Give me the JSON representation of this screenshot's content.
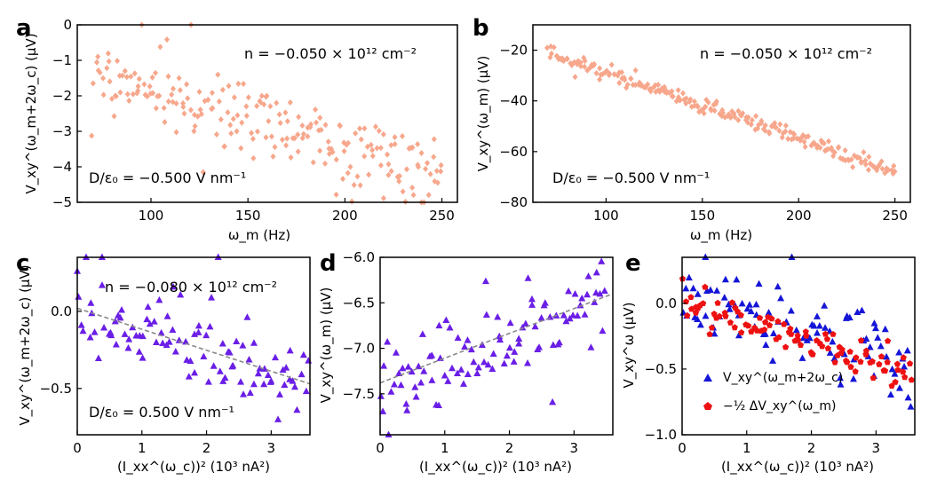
{
  "chart_data": [
    {
      "id": "a",
      "panel_label": "a",
      "type": "scatter",
      "marker": "diamond",
      "color": "#f7a78c",
      "xlabel": "ω_m (Hz)",
      "ylabel": "V_xy^(ω_m+2ω_c) (μV)",
      "xlim": [
        62,
        258
      ],
      "ylim": [
        -5,
        0
      ],
      "xticks": [
        100,
        150,
        200,
        250
      ],
      "yticks": [
        0,
        -1,
        -2,
        -3,
        -4,
        -5
      ],
      "xtick_labels": [
        "100",
        "150",
        "200",
        "250"
      ],
      "ytick_labels": [
        "0",
        "−1",
        "−2",
        "−3",
        "−4",
        "−5"
      ],
      "annotations": {
        "top_right": "n = −0.050 × 10¹² cm⁻²",
        "bottom_left": "D/ε₀ = −0.500 V nm⁻¹"
      },
      "trend": {
        "x_start": 70,
        "x_end": 250,
        "y_start": -1.3,
        "y_end": -4.2,
        "noise": 0.55,
        "count": 220
      }
    },
    {
      "id": "b",
      "panel_label": "b",
      "type": "scatter",
      "marker": "diamond",
      "color": "#f7a78c",
      "xlabel": "ω_m (Hz)",
      "ylabel": "V_xy^(ω_m) (μV)",
      "xlim": [
        62,
        258
      ],
      "ylim": [
        -80,
        -10
      ],
      "xticks": [
        100,
        150,
        200,
        250
      ],
      "yticks": [
        -20,
        -40,
        -60,
        -80
      ],
      "xtick_labels": [
        "100",
        "150",
        "200",
        "250"
      ],
      "ytick_labels": [
        "−20",
        "−40",
        "−60",
        "−80"
      ],
      "annotations": {
        "top_right": "n = −0.050 × 10¹² cm⁻²",
        "bottom_left": "D/ε₀ = −0.500 V nm⁻¹"
      },
      "trend": {
        "x_start": 70,
        "x_end": 250,
        "y_start": -21,
        "y_end": -68,
        "noise": 1.5,
        "count": 230
      }
    },
    {
      "id": "c",
      "panel_label": "c",
      "type": "scatter",
      "marker": "triangle",
      "color": "#6a1ee6",
      "xlabel": "(I_xx^(ω_c))² (10³ nA²)",
      "ylabel": "V_xy^(ω_m+2ω_c) (μV)",
      "xlim": [
        0,
        3.6
      ],
      "ylim": [
        -0.8,
        0.35
      ],
      "xticks": [
        0,
        1,
        2,
        3
      ],
      "yticks": [
        0.0,
        -0.5
      ],
      "xtick_labels": [
        "0",
        "1",
        "2",
        "3"
      ],
      "ytick_labels": [
        "0.0",
        "−0.5"
      ],
      "annotations": {
        "top_right": "n = −0.080 × 10¹² cm⁻²",
        "bottom_left": "D/ε₀ = 0.500 V nm⁻¹"
      },
      "fit_line": {
        "x": [
          0,
          3.6
        ],
        "y": [
          0.02,
          -0.47
        ],
        "style": "dashed",
        "color": "#888888"
      },
      "trend": {
        "x_start": 0,
        "x_end": 3.55,
        "y_start": 0.05,
        "y_end": -0.45,
        "noise": 0.15,
        "count": 100
      }
    },
    {
      "id": "d",
      "panel_label": "d",
      "type": "scatter",
      "marker": "triangle",
      "color": "#6a1ee6",
      "xlabel": "(I_xx^(ω_c))² (10³ nA²)",
      "ylabel": "V_xy^(ω_m) (μV)",
      "xlim": [
        0,
        3.6
      ],
      "ylim": [
        -7.95,
        -6.0
      ],
      "xticks": [
        0,
        1,
        2,
        3
      ],
      "yticks": [
        -6.0,
        -6.5,
        -7.0,
        -7.5
      ],
      "xtick_labels": [
        "0",
        "1",
        "2",
        "3"
      ],
      "ytick_labels": [
        "−6.0",
        "−6.5",
        "−7.0",
        "−7.5"
      ],
      "fit_line": {
        "x": [
          0,
          3.6
        ],
        "y": [
          -7.38,
          -6.4
        ],
        "style": "dashed",
        "color": "#888888"
      },
      "trend": {
        "x_start": 0,
        "x_end": 3.5,
        "y_start": -7.45,
        "y_end": -6.42,
        "noise": 0.22,
        "count": 100
      }
    },
    {
      "id": "e",
      "panel_label": "e",
      "type": "scatter",
      "xlabel": "(I_xx^(ω_c))² (10³ nA²)",
      "ylabel": "V_xy^ω (μV)",
      "xlim": [
        0,
        3.6
      ],
      "ylim": [
        -1.0,
        0.35
      ],
      "xticks": [
        0,
        1,
        2,
        3
      ],
      "yticks": [
        0.0,
        -0.5,
        -1.0
      ],
      "xtick_labels": [
        "0",
        "1",
        "2",
        "3"
      ],
      "ytick_labels": [
        "0.0",
        "−0.5",
        "−1.0"
      ],
      "series": [
        {
          "name": "V_xy^(ω_m+2ω_c)",
          "marker": "triangle",
          "color": "#1515d8",
          "trend": {
            "x_start": 0,
            "x_end": 3.55,
            "y_start": 0.05,
            "y_end": -0.47,
            "noise": 0.15,
            "count": 95
          }
        },
        {
          "name": "−½ ΔV_xy^(ω_m)",
          "marker": "pentagon",
          "color": "#ee1111",
          "trend": {
            "x_start": 0,
            "x_end": 3.55,
            "y_start": 0.02,
            "y_end": -0.55,
            "noise": 0.07,
            "count": 95
          }
        }
      ],
      "legend": [
        "V_xy^(ω_m+2ω_c)",
        "−½ ΔV_xy^(ω_m)"
      ]
    }
  ]
}
